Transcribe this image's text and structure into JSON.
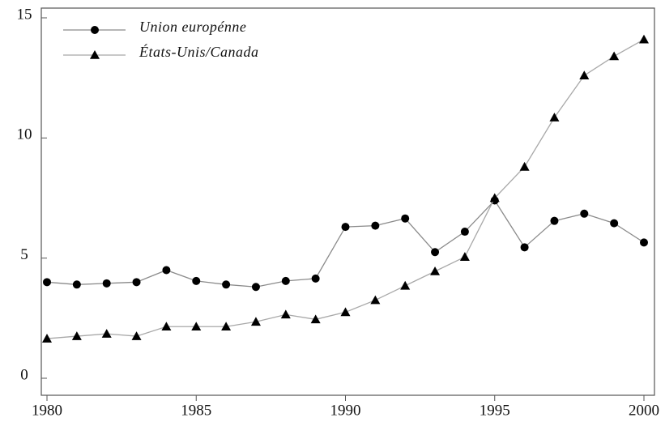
{
  "chart_data": {
    "type": "line",
    "x": [
      1980,
      1981,
      1982,
      1983,
      1984,
      1985,
      1986,
      1987,
      1988,
      1989,
      1990,
      1991,
      1992,
      1993,
      1994,
      1995,
      1996,
      1997,
      1998,
      1999,
      2000
    ],
    "series": [
      {
        "name": "Union europénne",
        "color": "#000000",
        "line_color": "#8a8a8a",
        "marker": "circle",
        "values": [
          4.0,
          3.9,
          3.95,
          4.0,
          4.5,
          4.05,
          3.9,
          3.8,
          4.05,
          4.15,
          6.3,
          6.35,
          6.65,
          5.25,
          6.1,
          7.4,
          5.45,
          6.55,
          6.85,
          6.45,
          5.65
        ]
      },
      {
        "name": "États-Unis/Canada",
        "color": "#000000",
        "line_color": "#a8a8a8",
        "marker": "triangle",
        "values": [
          1.65,
          1.75,
          1.85,
          1.75,
          2.15,
          2.15,
          2.15,
          2.35,
          2.65,
          2.45,
          2.75,
          3.25,
          3.85,
          4.45,
          5.05,
          7.5,
          8.8,
          10.85,
          12.6,
          13.4,
          14.1
        ]
      }
    ],
    "xlim": [
      1980,
      2000
    ],
    "xticks": [
      1980,
      1985,
      1990,
      1995,
      2000
    ],
    "ylim": [
      0,
      15
    ],
    "yticks": [
      0,
      5,
      10,
      15
    ],
    "legend": "top-left"
  }
}
